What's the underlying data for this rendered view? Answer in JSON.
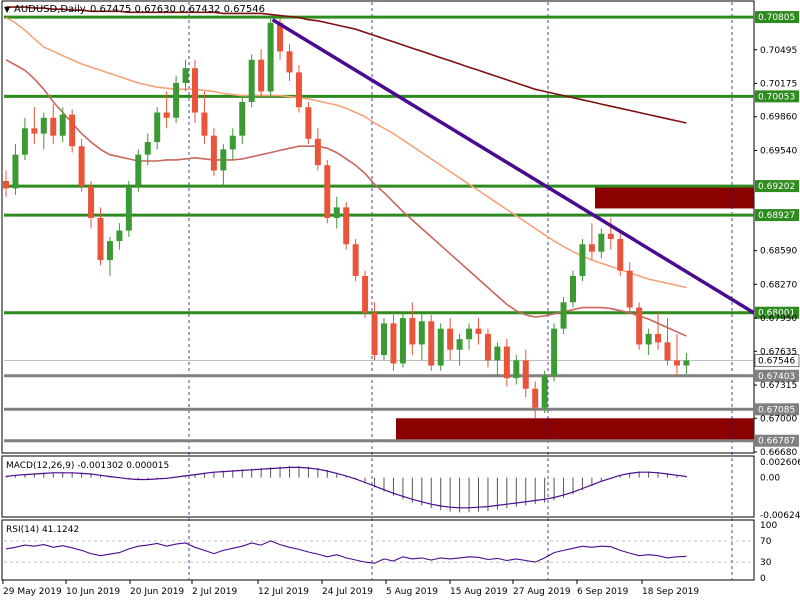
{
  "header": {
    "symbol": "AUDUSD,Daily",
    "ohlc": "0.67475 0.67630 0.67432 0.67546"
  },
  "macd_panel": {
    "label": "MACD(12,26,9) -0.001302 0.000015",
    "ticks": [
      "0.002606",
      "0.00",
      "-0.006248"
    ]
  },
  "rsi_panel": {
    "label": "RSI(14) 41.1242",
    "ticks": [
      "100",
      "70",
      "30",
      "0"
    ]
  },
  "chart_data": {
    "type": "candlestick",
    "symbol": "AUDUSD",
    "timeframe": "Daily",
    "ylim": [
      0.6668,
      0.7091
    ],
    "y_ticks": [
      "0.70495",
      "0.70175",
      "0.69860",
      "0.69540",
      "0.68590",
      "0.68270",
      "0.67950",
      "0.67635",
      "0.67315",
      "0.67000",
      "0.66680"
    ],
    "x_ticks": [
      "29 May 2019",
      "10 Jun 2019",
      "20 Jun 2019",
      "2 Jul 2019",
      "12 Jul 2019",
      "24 Jul 2019",
      "5 Aug 2019",
      "15 Aug 2019",
      "27 Aug 2019",
      "6 Sep 2019",
      "18 Sep 2019"
    ],
    "current_price": "0.67546",
    "horizontal_levels": [
      {
        "value": 0.70805,
        "label": "0.70805",
        "color": "#2e8b1e"
      },
      {
        "value": 0.70053,
        "label": "0.70053",
        "color": "#2e8b1e"
      },
      {
        "value": 0.69202,
        "label": "0.69202",
        "color": "#2e8b1e"
      },
      {
        "value": 0.68927,
        "label": "0.68927",
        "color": "#2e8b1e"
      },
      {
        "value": 0.68001,
        "label": "0.68001",
        "color": "#2e8b1e"
      },
      {
        "value": 0.67403,
        "label": "0.67403",
        "color": "#808080"
      },
      {
        "value": 0.67085,
        "label": "0.67085",
        "color": "#808080"
      },
      {
        "value": 0.66787,
        "label": "0.66787",
        "color": "#808080"
      }
    ],
    "zones": [
      {
        "from": 0.6899,
        "to": 0.6919,
        "color": "#8b0000"
      },
      {
        "from": 0.6679,
        "to": 0.67,
        "color": "#8b0000"
      }
    ],
    "trendline": {
      "x1_index": 28,
      "y1": 0.7078,
      "x2_index": 74,
      "y2": 0.68,
      "color": "#4b0b8f"
    },
    "candles": [
      [
        0.6925,
        0.6935,
        0.691,
        0.6918
      ],
      [
        0.6918,
        0.696,
        0.6912,
        0.695
      ],
      [
        0.695,
        0.6985,
        0.6945,
        0.6975
      ],
      [
        0.6975,
        0.6995,
        0.696,
        0.697
      ],
      [
        0.697,
        0.699,
        0.6955,
        0.6985
      ],
      [
        0.6985,
        0.6998,
        0.696,
        0.6968
      ],
      [
        0.6968,
        0.6995,
        0.6962,
        0.6988
      ],
      [
        0.6988,
        0.6993,
        0.6952,
        0.6958
      ],
      [
        0.6958,
        0.6965,
        0.6915,
        0.692
      ],
      [
        0.692,
        0.6925,
        0.688,
        0.689
      ],
      [
        0.689,
        0.69,
        0.6845,
        0.685
      ],
      [
        0.685,
        0.6872,
        0.6835,
        0.6868
      ],
      [
        0.6868,
        0.6885,
        0.686,
        0.6878
      ],
      [
        0.6878,
        0.6925,
        0.6872,
        0.692
      ],
      [
        0.692,
        0.6955,
        0.6915,
        0.695
      ],
      [
        0.695,
        0.697,
        0.694,
        0.6962
      ],
      [
        0.6962,
        0.6995,
        0.6955,
        0.699
      ],
      [
        0.699,
        0.701,
        0.6975,
        0.6985
      ],
      [
        0.6985,
        0.7025,
        0.698,
        0.7018
      ],
      [
        0.7018,
        0.704,
        0.701,
        0.7032
      ],
      [
        0.7032,
        0.704,
        0.698,
        0.699
      ],
      [
        0.699,
        0.701,
        0.696,
        0.6968
      ],
      [
        0.6968,
        0.6975,
        0.693,
        0.6935
      ],
      [
        0.6935,
        0.696,
        0.692,
        0.6955
      ],
      [
        0.6955,
        0.6975,
        0.6945,
        0.6968
      ],
      [
        0.6968,
        0.7005,
        0.696,
        0.7
      ],
      [
        0.7,
        0.7045,
        0.6995,
        0.704
      ],
      [
        0.704,
        0.705,
        0.7005,
        0.701
      ],
      [
        0.701,
        0.7082,
        0.7005,
        0.7075
      ],
      [
        0.7075,
        0.708,
        0.704,
        0.7048
      ],
      [
        0.7048,
        0.7055,
        0.702,
        0.7028
      ],
      [
        0.7028,
        0.7035,
        0.699,
        0.6995
      ],
      [
        0.6995,
        0.7,
        0.696,
        0.6965
      ],
      [
        0.6965,
        0.6975,
        0.6935,
        0.694
      ],
      [
        0.694,
        0.6945,
        0.6885,
        0.689
      ],
      [
        0.689,
        0.691,
        0.688,
        0.69
      ],
      [
        0.69,
        0.6905,
        0.686,
        0.6865
      ],
      [
        0.6865,
        0.687,
        0.683,
        0.6835
      ],
      [
        0.6835,
        0.684,
        0.6795,
        0.68
      ],
      [
        0.68,
        0.681,
        0.6755,
        0.676
      ],
      [
        0.676,
        0.6795,
        0.6755,
        0.679
      ],
      [
        0.679,
        0.68,
        0.6745,
        0.6752
      ],
      [
        0.6752,
        0.68,
        0.6748,
        0.6795
      ],
      [
        0.6795,
        0.681,
        0.676,
        0.677
      ],
      [
        0.677,
        0.68,
        0.6755,
        0.6792
      ],
      [
        0.6792,
        0.6798,
        0.6745,
        0.675
      ],
      [
        0.675,
        0.679,
        0.6745,
        0.6785
      ],
      [
        0.6785,
        0.6795,
        0.6755,
        0.6765
      ],
      [
        0.6765,
        0.678,
        0.675,
        0.6775
      ],
      [
        0.6775,
        0.679,
        0.6765,
        0.6785
      ],
      [
        0.6785,
        0.6795,
        0.677,
        0.678
      ],
      [
        0.678,
        0.6785,
        0.6748,
        0.6755
      ],
      [
        0.6755,
        0.6772,
        0.674,
        0.6768
      ],
      [
        0.6768,
        0.6775,
        0.673,
        0.6738
      ],
      [
        0.6738,
        0.676,
        0.6732,
        0.6755
      ],
      [
        0.6755,
        0.6765,
        0.672,
        0.6728
      ],
      [
        0.6728,
        0.6735,
        0.67,
        0.671
      ],
      [
        0.671,
        0.6745,
        0.6705,
        0.674
      ],
      [
        0.674,
        0.679,
        0.6735,
        0.6785
      ],
      [
        0.6785,
        0.6815,
        0.678,
        0.681
      ],
      [
        0.681,
        0.684,
        0.6805,
        0.6835
      ],
      [
        0.6835,
        0.687,
        0.683,
        0.6865
      ],
      [
        0.6865,
        0.6885,
        0.685,
        0.6858
      ],
      [
        0.6858,
        0.688,
        0.6852,
        0.6875
      ],
      [
        0.6875,
        0.689,
        0.686,
        0.687
      ],
      [
        0.687,
        0.6878,
        0.6835,
        0.684
      ],
      [
        0.684,
        0.6848,
        0.68,
        0.6805
      ],
      [
        0.6805,
        0.681,
        0.6765,
        0.677
      ],
      [
        0.677,
        0.6785,
        0.676,
        0.678
      ],
      [
        0.678,
        0.68,
        0.6765,
        0.6772
      ],
      [
        0.6772,
        0.6795,
        0.675,
        0.6755
      ],
      [
        0.6755,
        0.678,
        0.674,
        0.675
      ],
      [
        0.675,
        0.6762,
        0.6742,
        0.6755
      ]
    ],
    "moving_averages": [
      {
        "color": "#f4a27a",
        "values": [
          0.708,
          0.7075,
          0.7068,
          0.706,
          0.7052,
          0.7048,
          0.7044,
          0.704,
          0.7036,
          0.7033,
          0.703,
          0.7027,
          0.7024,
          0.7021,
          0.7018,
          0.7016,
          0.7014,
          0.7013,
          0.7012,
          0.7012,
          0.7012,
          0.7011,
          0.701,
          0.7008,
          0.7007,
          0.7006,
          0.7006,
          0.7006,
          0.7006,
          0.7006,
          0.7005,
          0.7004,
          0.7003,
          0.7001,
          0.6999,
          0.6997,
          0.6994,
          0.699,
          0.6986,
          0.698,
          0.6975,
          0.697,
          0.6964,
          0.6958,
          0.6952,
          0.6946,
          0.694,
          0.6934,
          0.6928,
          0.6922,
          0.6916,
          0.691,
          0.6904,
          0.6898,
          0.6892,
          0.6886,
          0.688,
          0.6874,
          0.6868,
          0.6863,
          0.6858,
          0.6854,
          0.685,
          0.6847,
          0.6844,
          0.6841,
          0.6838,
          0.6835,
          0.6832,
          0.683,
          0.6828,
          0.6826,
          0.6824
        ]
      },
      {
        "color": "#c8665f",
        "values": [
          0.704,
          0.7035,
          0.703,
          0.7022,
          0.7012,
          0.7,
          0.699,
          0.698,
          0.697,
          0.6962,
          0.6955,
          0.695,
          0.6948,
          0.6946,
          0.6944,
          0.6944,
          0.6944,
          0.6945,
          0.6945,
          0.6946,
          0.6947,
          0.6946,
          0.6945,
          0.6945,
          0.6945,
          0.6946,
          0.6948,
          0.695,
          0.6952,
          0.6954,
          0.6956,
          0.6958,
          0.6958,
          0.6958,
          0.6956,
          0.6952,
          0.6946,
          0.694,
          0.6932,
          0.6922,
          0.6914,
          0.6905,
          0.6896,
          0.6888,
          0.688,
          0.6872,
          0.6864,
          0.6856,
          0.6848,
          0.684,
          0.6832,
          0.6824,
          0.6816,
          0.6808,
          0.6802,
          0.6798,
          0.6796,
          0.6797,
          0.6799,
          0.6801,
          0.6803,
          0.6805,
          0.6805,
          0.6805,
          0.6804,
          0.6802,
          0.68,
          0.6797,
          0.6794,
          0.679,
          0.6786,
          0.6782,
          0.6778
        ]
      },
      {
        "color": "#7f1010",
        "values": [
          0.709,
          0.709,
          0.709,
          0.7089,
          0.7089,
          0.7088,
          0.7088,
          0.7087,
          0.7087,
          0.7086,
          0.7086,
          0.7086,
          0.7086,
          0.7085,
          0.7085,
          0.7085,
          0.7085,
          0.7085,
          0.7085,
          0.7085,
          0.7085,
          0.7085,
          0.7085,
          0.7084,
          0.7084,
          0.7084,
          0.7084,
          0.7084,
          0.7083,
          0.7082,
          0.7081,
          0.708,
          0.7078,
          0.7077,
          0.7075,
          0.7073,
          0.7071,
          0.7069,
          0.7066,
          0.7063,
          0.706,
          0.7057,
          0.7054,
          0.7051,
          0.7048,
          0.7045,
          0.7042,
          0.7039,
          0.7036,
          0.7033,
          0.703,
          0.7027,
          0.7024,
          0.7021,
          0.7018,
          0.7015,
          0.7012,
          0.701,
          0.7008,
          0.7006,
          0.7004,
          0.7002,
          0.7,
          0.6998,
          0.6996,
          0.6994,
          0.6992,
          0.699,
          0.6988,
          0.6986,
          0.6984,
          0.6982,
          0.698
        ]
      }
    ],
    "macd_signal": [
      0.0002,
      0.0004,
      0.0005,
      0.0006,
      0.0007,
      0.0008,
      0.0008,
      0.0008,
      0.0007,
      0.0006,
      0.0004,
      0.0002,
      0.0,
      -0.0002,
      -0.0003,
      -0.0003,
      -0.0002,
      -0.0001,
      0.0001,
      0.0003,
      0.0005,
      0.0007,
      0.0009,
      0.001,
      0.0011,
      0.0012,
      0.0013,
      0.0014,
      0.0015,
      0.0016,
      0.0017,
      0.0017,
      0.0016,
      0.0014,
      0.0011,
      0.0007,
      0.0003,
      -0.0002,
      -0.0008,
      -0.0014,
      -0.002,
      -0.0026,
      -0.0031,
      -0.0036,
      -0.004,
      -0.0044,
      -0.0047,
      -0.0049,
      -0.005,
      -0.005,
      -0.0049,
      -0.0048,
      -0.0046,
      -0.0044,
      -0.0042,
      -0.004,
      -0.0038,
      -0.0036,
      -0.0033,
      -0.0029,
      -0.0024,
      -0.0018,
      -0.0012,
      -0.0006,
      -0.0001,
      0.0004,
      0.0007,
      0.0009,
      0.0009,
      0.0008,
      0.0006,
      0.0004,
      0.0002
    ],
    "rsi": [
      55,
      58,
      62,
      60,
      63,
      58,
      61,
      57,
      52,
      46,
      42,
      45,
      48,
      55,
      60,
      62,
      65,
      60,
      64,
      66,
      58,
      52,
      46,
      52,
      56,
      60,
      66,
      62,
      70,
      63,
      58,
      54,
      49,
      45,
      40,
      44,
      38,
      34,
      30,
      28,
      36,
      32,
      40,
      36,
      38,
      34,
      38,
      36,
      38,
      40,
      39,
      35,
      37,
      33,
      36,
      33,
      30,
      38,
      48,
      52,
      56,
      60,
      58,
      60,
      59,
      52,
      47,
      42,
      44,
      42,
      38,
      40,
      41
    ]
  }
}
